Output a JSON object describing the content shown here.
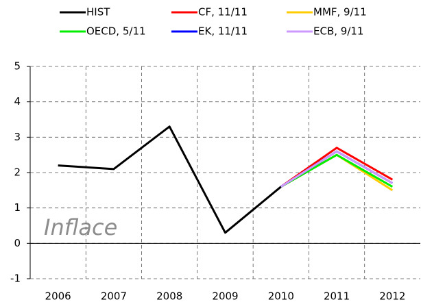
{
  "chart_data": {
    "type": "line",
    "categories": [
      "2006",
      "2007",
      "2008",
      "2009",
      "2010",
      "2011",
      "2012"
    ],
    "series": [
      {
        "name": "HIST",
        "color": "#000000",
        "values": [
          2.2,
          2.1,
          3.3,
          0.3,
          1.6,
          null,
          null
        ]
      },
      {
        "name": "CF, 11/11",
        "color": "#ff0000",
        "values": [
          null,
          null,
          null,
          null,
          1.6,
          2.7,
          1.8
        ]
      },
      {
        "name": "MMF, 9/11",
        "color": "#ffcc00",
        "values": [
          null,
          null,
          null,
          null,
          1.6,
          2.5,
          1.5
        ]
      },
      {
        "name": "OECD, 5/11",
        "color": "#00ee00",
        "values": [
          null,
          null,
          null,
          null,
          1.6,
          2.5,
          1.6
        ]
      },
      {
        "name": "EK, 11/11",
        "color": "#0000ff",
        "values": [
          null,
          null,
          null,
          null,
          1.6,
          2.6,
          1.7
        ]
      },
      {
        "name": "ECB, 9/11",
        "color": "#cc99ff",
        "values": [
          null,
          null,
          null,
          null,
          1.6,
          2.6,
          1.7
        ]
      }
    ],
    "annotation": "Inflace",
    "ylim": [
      -1,
      5
    ],
    "yticks": [
      -1,
      0,
      1,
      2,
      3,
      4,
      5
    ],
    "grid": true
  }
}
